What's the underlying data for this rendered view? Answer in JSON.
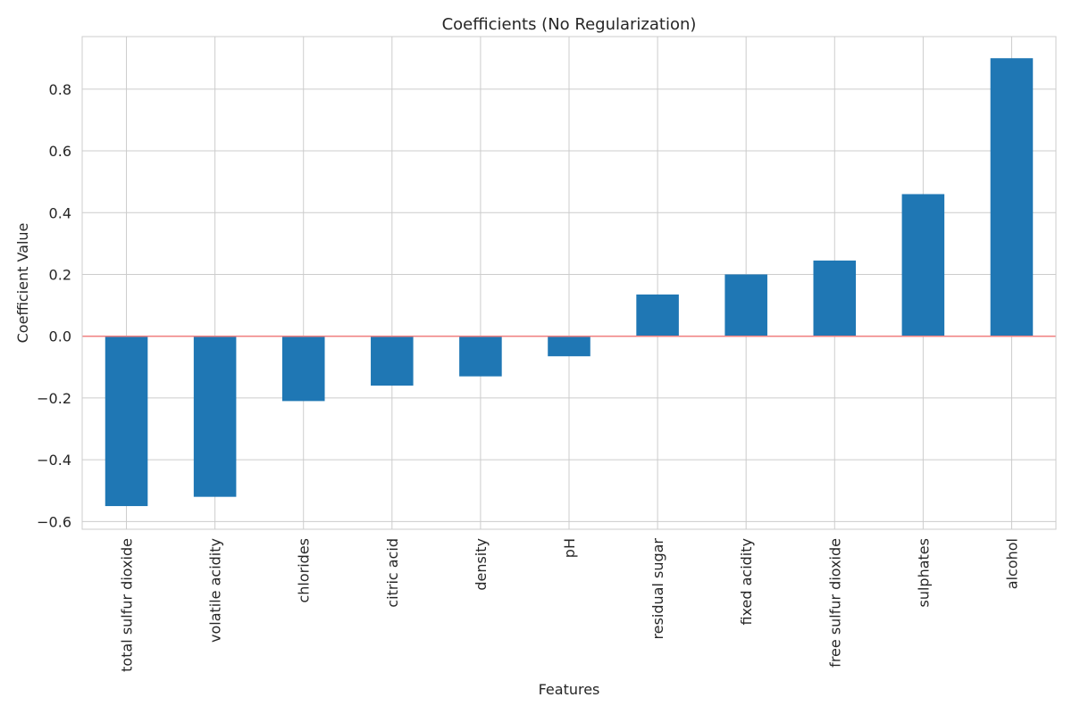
{
  "chart_data": {
    "type": "bar",
    "title": "Coefficients (No Regularization)",
    "xlabel": "Features",
    "ylabel": "Coefficient Value",
    "categories": [
      "total sulfur dioxide",
      "volatile acidity",
      "chlorides",
      "citric acid",
      "density",
      "pH",
      "residual sugar",
      "fixed acidity",
      "free sulfur dioxide",
      "sulphates",
      "alcohol"
    ],
    "values": [
      -0.55,
      -0.52,
      -0.21,
      -0.16,
      -0.13,
      -0.065,
      0.135,
      0.2,
      0.245,
      0.46,
      0.9
    ],
    "ylim": [
      -0.625,
      0.97
    ],
    "yticks": [
      -0.6,
      -0.4,
      -0.2,
      0.0,
      0.2,
      0.4,
      0.6,
      0.8
    ],
    "ytick_labels": [
      "−0.6",
      "−0.4",
      "−0.2",
      "0.0",
      "0.2",
      "0.4",
      "0.6",
      "0.8"
    ],
    "grid": true,
    "reference_line": {
      "y": 0,
      "color": "#f08080"
    },
    "colors": {
      "bar": "#1f77b4",
      "grid": "#cccccc",
      "text": "#262626"
    }
  }
}
